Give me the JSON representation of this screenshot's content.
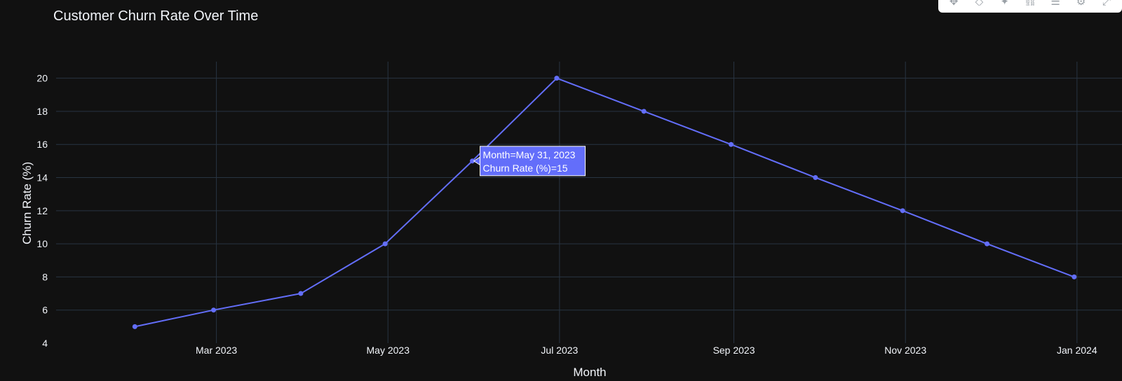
{
  "chart_data": {
    "type": "line",
    "title": "Customer Churn Rate Over Time",
    "xlabel": "Month",
    "ylabel": "Churn Rate (%)",
    "x": [
      "2023-01-31",
      "2023-02-28",
      "2023-03-31",
      "2023-04-30",
      "2023-05-31",
      "2023-06-30",
      "2023-07-31",
      "2023-08-31",
      "2023-09-30",
      "2023-10-31",
      "2023-11-30",
      "2023-12-31"
    ],
    "series": [
      {
        "values": [
          5,
          6,
          7,
          10,
          15,
          20,
          18,
          16,
          14,
          12,
          10,
          8
        ],
        "color": "#636efa"
      }
    ],
    "xticks": [
      {
        "date": "2023-03-01",
        "label": "Mar 2023"
      },
      {
        "date": "2023-05-01",
        "label": "May 2023"
      },
      {
        "date": "2023-07-01",
        "label": "Jul 2023"
      },
      {
        "date": "2023-09-01",
        "label": "Sep 2023"
      },
      {
        "date": "2023-11-01",
        "label": "Nov 2023"
      },
      {
        "date": "2024-01-01",
        "label": "Jan 2024"
      }
    ],
    "yticks": [
      4,
      6,
      8,
      10,
      12,
      14,
      16,
      18,
      20
    ],
    "ylim": [
      4,
      21
    ],
    "xlim": [
      "2023-01-03",
      "2024-01-17"
    ],
    "grid": true,
    "hover": {
      "line1": "Month=May 31, 2023",
      "line2": "Churn Rate (%)=15",
      "index": 4
    }
  },
  "modebar": {
    "icons": [
      "pan-icon",
      "zoom-in-icon",
      "autoscale-icon",
      "link-icon",
      "comment-icon",
      "settings-icon",
      "expand-icon"
    ]
  }
}
